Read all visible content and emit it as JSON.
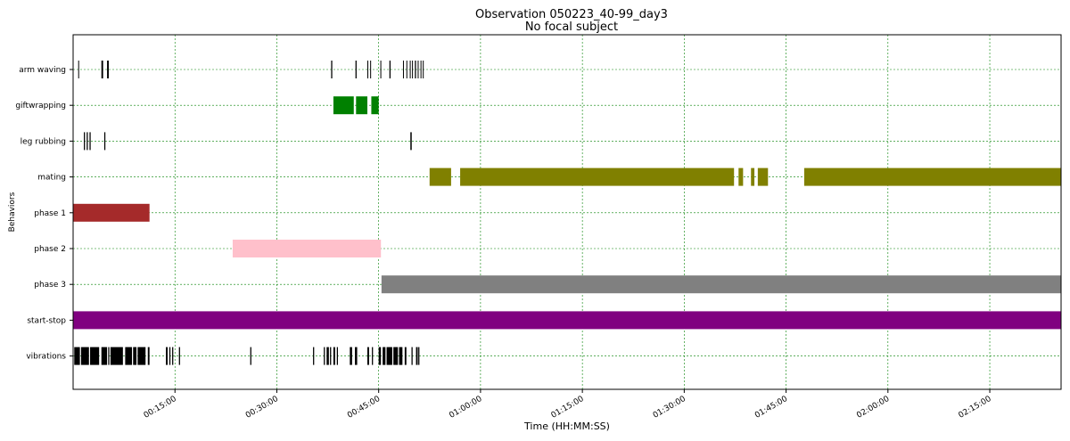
{
  "chart_data": {
    "type": "timeline",
    "title": "Observation 050223_40-99_day3",
    "subtitle": "No focal subject",
    "xlabel": "Time (HH:MM:SS)",
    "ylabel": "Behaviors",
    "x_unit": "seconds",
    "xlim": [
      0,
      8730
    ],
    "grid": true,
    "x_ticks": [
      {
        "value": 900,
        "label": "00:15:00"
      },
      {
        "value": 1800,
        "label": "00:30:00"
      },
      {
        "value": 2700,
        "label": "00:45:00"
      },
      {
        "value": 3600,
        "label": "01:00:00"
      },
      {
        "value": 4500,
        "label": "01:15:00"
      },
      {
        "value": 5400,
        "label": "01:30:00"
      },
      {
        "value": 6300,
        "label": "01:45:00"
      },
      {
        "value": 7200,
        "label": "02:00:00"
      },
      {
        "value": 8100,
        "label": "02:15:00"
      }
    ],
    "behaviors": [
      {
        "name": "arm waving",
        "color": "#000000",
        "segments": [
          [
            45,
            52
          ],
          [
            250,
            265
          ],
          [
            300,
            315
          ],
          [
            2280,
            2290
          ],
          [
            2495,
            2505
          ],
          [
            2600,
            2608
          ],
          [
            2625,
            2632
          ],
          [
            2715,
            2722
          ],
          [
            2795,
            2805
          ],
          [
            2915,
            2922
          ],
          [
            2945,
            2952
          ],
          [
            2975,
            2982
          ],
          [
            2995,
            3002
          ],
          [
            3020,
            3030
          ],
          [
            3045,
            3052
          ],
          [
            3070,
            3077
          ],
          [
            3090,
            3097
          ]
        ]
      },
      {
        "name": "giftwrapping",
        "color": "#008000",
        "segments": [
          [
            2300,
            2480
          ],
          [
            2500,
            2600
          ],
          [
            2635,
            2700
          ]
        ]
      },
      {
        "name": "leg rubbing",
        "color": "#000000",
        "segments": [
          [
            95,
            105
          ],
          [
            120,
            130
          ],
          [
            145,
            155
          ],
          [
            275,
            285
          ],
          [
            2980,
            2992
          ]
        ]
      },
      {
        "name": "mating",
        "color": "#808000",
        "segments": [
          [
            3150,
            3340
          ],
          [
            3420,
            5840
          ],
          [
            5880,
            5920
          ],
          [
            5990,
            6020
          ],
          [
            6050,
            6140
          ],
          [
            6460,
            8730
          ]
        ]
      },
      {
        "name": "phase 1",
        "color": "#a52a2a",
        "segments": [
          [
            0,
            675
          ]
        ]
      },
      {
        "name": "phase 2",
        "color": "#ffc0cb",
        "segments": [
          [
            1410,
            2720
          ]
        ]
      },
      {
        "name": "phase 3",
        "color": "#808080",
        "segments": [
          [
            2725,
            8730
          ]
        ]
      },
      {
        "name": "start-stop",
        "color": "#800080",
        "segments": [
          [
            0,
            8730
          ]
        ]
      },
      {
        "name": "vibrations",
        "color": "#000000",
        "segments": [
          [
            10,
            60
          ],
          [
            70,
            140
          ],
          [
            150,
            230
          ],
          [
            250,
            300
          ],
          [
            310,
            320
          ],
          [
            330,
            440
          ],
          [
            460,
            520
          ],
          [
            530,
            560
          ],
          [
            570,
            640
          ],
          [
            660,
            675
          ],
          [
            820,
            835
          ],
          [
            850,
            860
          ],
          [
            875,
            885
          ],
          [
            935,
            945
          ],
          [
            1565,
            1575
          ],
          [
            2120,
            2130
          ],
          [
            2215,
            2225
          ],
          [
            2240,
            2260
          ],
          [
            2270,
            2280
          ],
          [
            2300,
            2315
          ],
          [
            2330,
            2340
          ],
          [
            2445,
            2465
          ],
          [
            2490,
            2510
          ],
          [
            2600,
            2615
          ],
          [
            2640,
            2650
          ],
          [
            2700,
            2720
          ],
          [
            2735,
            2760
          ],
          [
            2770,
            2820
          ],
          [
            2830,
            2870
          ],
          [
            2880,
            2910
          ],
          [
            2930,
            2945
          ],
          [
            2990,
            3000
          ],
          [
            3030,
            3045
          ],
          [
            3050,
            3060
          ]
        ]
      }
    ]
  }
}
